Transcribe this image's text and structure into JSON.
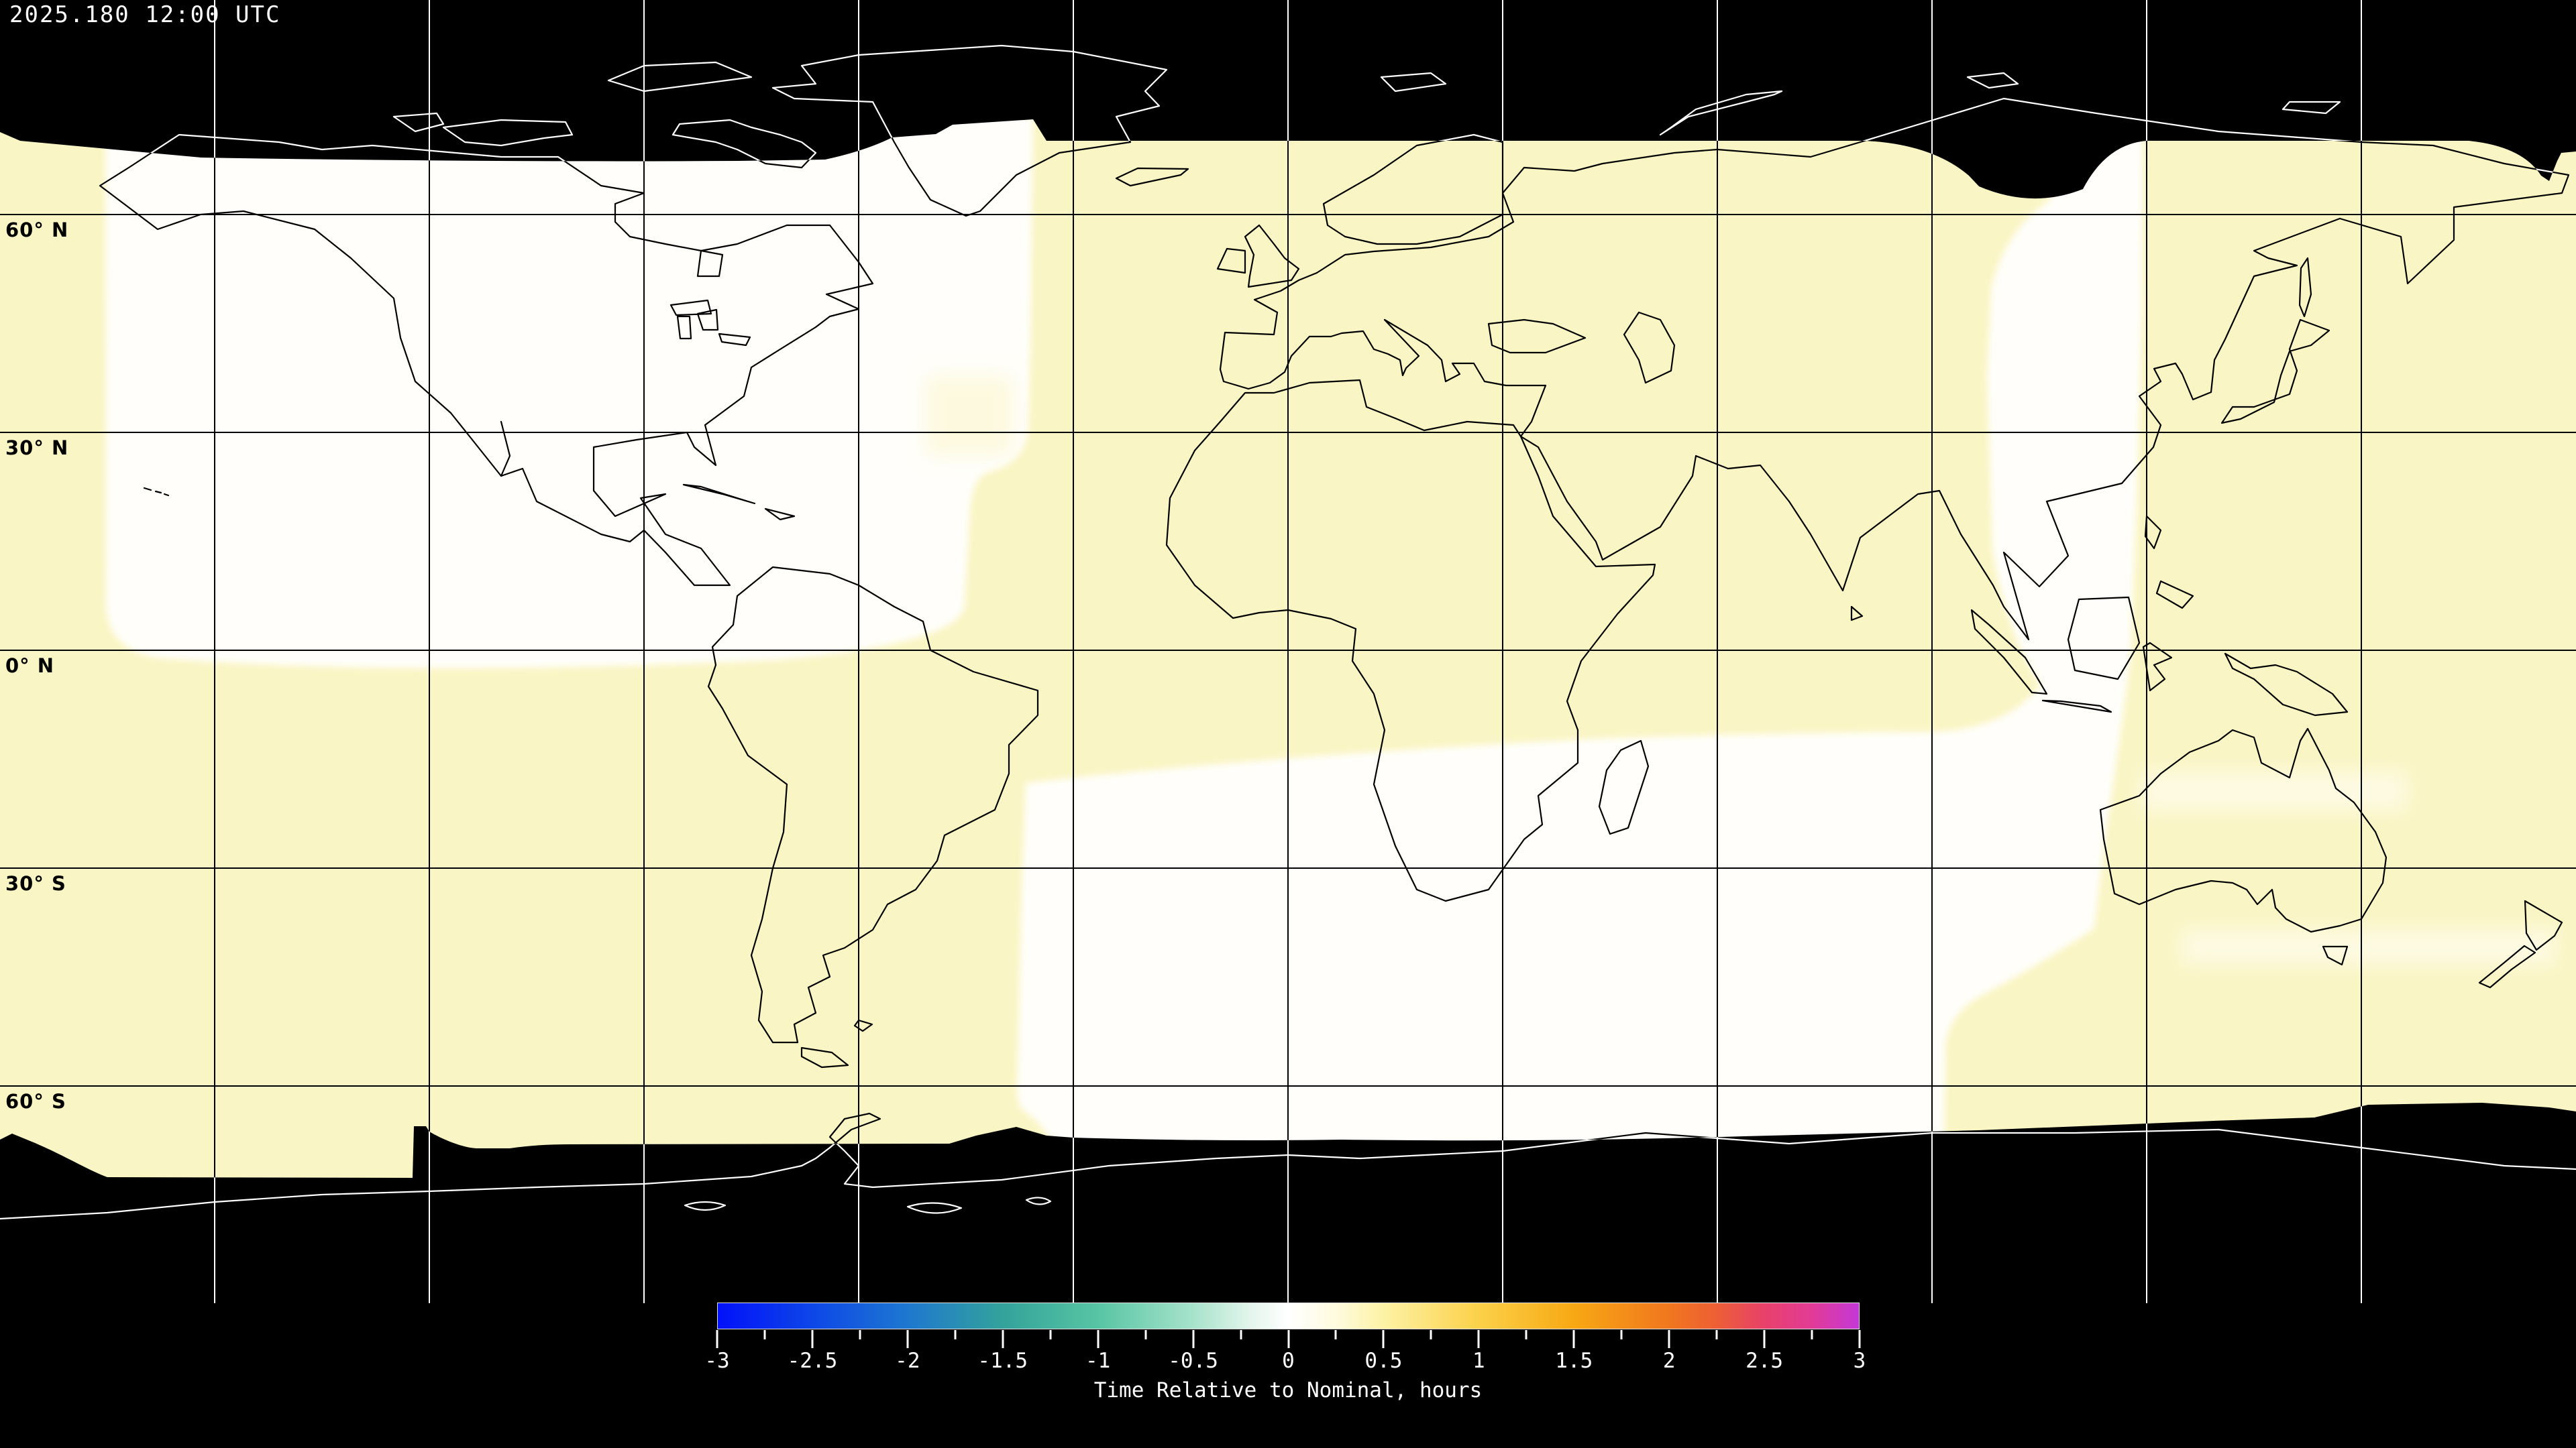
{
  "header": {
    "timestamp": "2025.180 12:00 UTC"
  },
  "map": {
    "latitude_labels": [
      {
        "text": "60° N"
      },
      {
        "text": "30° N"
      },
      {
        "text": "0° N"
      },
      {
        "text": "30° S"
      },
      {
        "text": "60° S"
      }
    ]
  },
  "colorbar": {
    "tick_labels": [
      "-3",
      "-2.5",
      "-2",
      "-1.5",
      "-1",
      "-0.5",
      "0",
      "0.5",
      "1",
      "1.5",
      "2",
      "2.5",
      "3"
    ],
    "caption": "Time Relative to Nominal, hours"
  },
  "colors": {
    "background": "#000000",
    "swath_yellow": "#faf5c4",
    "swath_white": "#fffefa",
    "coastline_data": "#000000",
    "coastline_nodata": "#ffffff",
    "grid_data": "#000000",
    "grid_nodata": "#ffffff",
    "frame_line": "#888888",
    "text": "#ffffff",
    "label_text": "#000000"
  },
  "chart_data": {
    "type": "heatmap",
    "projection": "equirectangular",
    "title": "2025.180 12:00 UTC",
    "colorbar_label": "Time Relative to Nominal, hours",
    "value_range": [
      -3,
      3
    ],
    "colorbar_ticks": [
      -3,
      -2.5,
      -2,
      -1.5,
      -1,
      -0.5,
      0,
      0.5,
      1,
      1.5,
      2,
      2.5,
      3
    ],
    "minor_tick_step": 0.25,
    "latitude_gridlines_deg": [
      60,
      30,
      0,
      -30,
      -60
    ],
    "longitude_gridline_spacing_deg": 30,
    "colormap_stops": [
      {
        "value": -3.0,
        "color": "#0211fa"
      },
      {
        "value": -2.5,
        "color": "#0d47e8"
      },
      {
        "value": -2.0,
        "color": "#1e78cf"
      },
      {
        "value": -1.5,
        "color": "#33a39b"
      },
      {
        "value": -1.0,
        "color": "#57c5a3"
      },
      {
        "value": -0.5,
        "color": "#a7e3cc"
      },
      {
        "value": -0.2,
        "color": "#e3f5ec"
      },
      {
        "value": 0.0,
        "color": "#ffffff"
      },
      {
        "value": 0.25,
        "color": "#fffbdf"
      },
      {
        "value": 0.5,
        "color": "#fdf2a5"
      },
      {
        "value": 1.0,
        "color": "#fbd149"
      },
      {
        "value": 1.5,
        "color": "#f7a813"
      },
      {
        "value": 2.0,
        "color": "#f0771e"
      },
      {
        "value": 2.25,
        "color": "#ed5f35"
      },
      {
        "value": 2.5,
        "color": "#e8416a"
      },
      {
        "value": 2.75,
        "color": "#e23b96"
      },
      {
        "value": 3.0,
        "color": "#c438d8"
      }
    ],
    "observed_regions": [
      {
        "region": "Americas / eastern Pacific swath (north of ~10S)",
        "value_hours": 0.0,
        "fill": "#fffefa"
      },
      {
        "region": "Atlantic / Europe / Africa / central swath",
        "value_hours": 0.3,
        "fill": "#faf5c4"
      },
      {
        "region": "East Asia / western Pacific swath (north of ~5S)",
        "value_hours": 0.05,
        "fill": "#fffefa"
      },
      {
        "region": "Indian Ocean / Australia / south Pacific swath (south of ~10S)",
        "value_hours": 0.3,
        "fill": "#faf5c4"
      },
      {
        "region": "Far-west and far-east edge band (dateline)",
        "value_hours": 0.3,
        "fill": "#faf5c4"
      },
      {
        "region": "High latitudes beyond ~72N and below ~68S",
        "value_hours": null,
        "note": "no data (black)"
      }
    ]
  }
}
